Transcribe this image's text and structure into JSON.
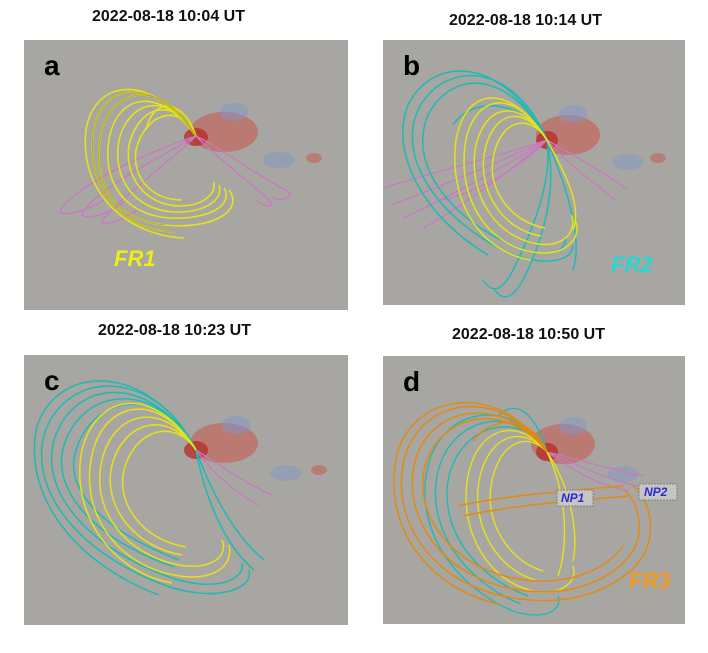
{
  "colors": {
    "background": "#a8a6a2",
    "fr1_yellow": "#e6e21a",
    "fr2_cyan": "#1fb9b4",
    "fr3_orange": "#e08a14",
    "pink": "#c77ac0",
    "red_spot": "#c8554a",
    "blue_spot": "#7f96c9",
    "np_label": "#2b2bd0"
  },
  "panels": [
    {
      "id": "a",
      "letter": "a",
      "timestamp": "2022-08-18 10:04 UT",
      "labels": [
        {
          "text": "FR1",
          "color": "#f0ec15"
        }
      ]
    },
    {
      "id": "b",
      "letter": "b",
      "timestamp": "2022-08-18 10:14 UT",
      "labels": [
        {
          "text": "FR2",
          "color": "#27d6d2"
        }
      ]
    },
    {
      "id": "c",
      "letter": "c",
      "timestamp": "2022-08-18 10:23 UT",
      "labels": []
    },
    {
      "id": "d",
      "letter": "d",
      "timestamp": "2022-08-18 10:50 UT",
      "labels": [
        {
          "text": "FR3",
          "color": "#f29a1c"
        },
        {
          "text": "NP1",
          "color": "#2b2bd0"
        },
        {
          "text": "NP2",
          "color": "#2b2bd0"
        }
      ]
    }
  ]
}
